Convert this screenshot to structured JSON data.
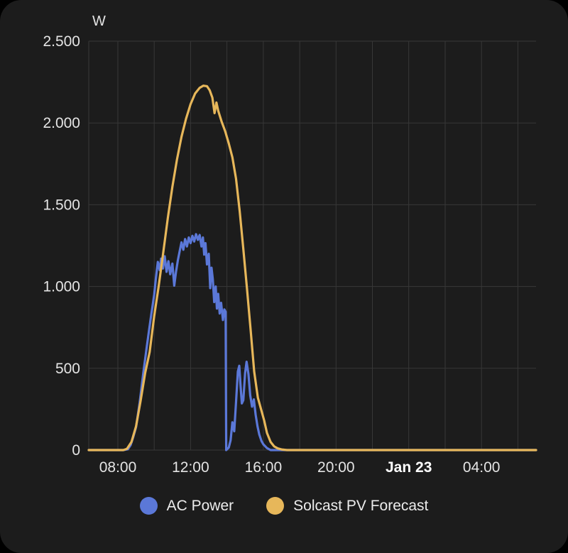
{
  "page_background": "#000000",
  "card_background": "#1c1c1c",
  "grid_color": "#373737",
  "text_color": "#e4e4e4",
  "bold_tick_color": "#ffffff",
  "chart_data": {
    "type": "line",
    "ylabel": "W",
    "ylim": [
      0,
      2500
    ],
    "x_range_hours": [
      6.4,
      31.0
    ],
    "grid": true,
    "legend_position": "bottom",
    "y_ticks": [
      {
        "value": 0,
        "label": "0"
      },
      {
        "value": 500,
        "label": "500"
      },
      {
        "value": 1000,
        "label": "1.000"
      },
      {
        "value": 1500,
        "label": "1.500"
      },
      {
        "value": 2000,
        "label": "2.000"
      },
      {
        "value": 2500,
        "label": "2.500"
      }
    ],
    "x_ticks": [
      {
        "value": 8,
        "label": "08:00",
        "bold": false
      },
      {
        "value": 12,
        "label": "12:00",
        "bold": false
      },
      {
        "value": 16,
        "label": "16:00",
        "bold": false
      },
      {
        "value": 20,
        "label": "20:00",
        "bold": false
      },
      {
        "value": 24,
        "label": "Jan 23",
        "bold": true
      },
      {
        "value": 28,
        "label": "04:00",
        "bold": false
      }
    ],
    "x_grid_hours": [
      8,
      10,
      12,
      14,
      16,
      18,
      20,
      22,
      24,
      26,
      28,
      30
    ],
    "series": [
      {
        "name": "AC Power",
        "color": "#5b78d8",
        "points": [
          [
            6.4,
            0
          ],
          [
            7.5,
            0
          ],
          [
            8.3,
            0
          ],
          [
            8.55,
            5
          ],
          [
            8.7,
            30
          ],
          [
            8.85,
            80
          ],
          [
            9.0,
            140
          ],
          [
            9.2,
            290
          ],
          [
            9.4,
            470
          ],
          [
            9.6,
            640
          ],
          [
            9.8,
            800
          ],
          [
            10.0,
            950
          ],
          [
            10.1,
            1060
          ],
          [
            10.2,
            1150
          ],
          [
            10.3,
            1100
          ],
          [
            10.38,
            1170
          ],
          [
            10.48,
            1110
          ],
          [
            10.58,
            1185
          ],
          [
            10.68,
            1090
          ],
          [
            10.78,
            1155
          ],
          [
            10.88,
            1075
          ],
          [
            11.0,
            1140
          ],
          [
            11.1,
            1005
          ],
          [
            11.2,
            1090
          ],
          [
            11.3,
            1160
          ],
          [
            11.4,
            1215
          ],
          [
            11.5,
            1270
          ],
          [
            11.6,
            1225
          ],
          [
            11.7,
            1290
          ],
          [
            11.8,
            1245
          ],
          [
            11.9,
            1300
          ],
          [
            12.0,
            1265
          ],
          [
            12.1,
            1310
          ],
          [
            12.2,
            1275
          ],
          [
            12.3,
            1320
          ],
          [
            12.4,
            1285
          ],
          [
            12.5,
            1315
          ],
          [
            12.6,
            1245
          ],
          [
            12.68,
            1300
          ],
          [
            12.75,
            1195
          ],
          [
            12.82,
            1265
          ],
          [
            12.9,
            1135
          ],
          [
            13.0,
            1200
          ],
          [
            13.08,
            990
          ],
          [
            13.15,
            1115
          ],
          [
            13.22,
            1045
          ],
          [
            13.3,
            905
          ],
          [
            13.38,
            1000
          ],
          [
            13.45,
            865
          ],
          [
            13.52,
            955
          ],
          [
            13.6,
            835
          ],
          [
            13.68,
            900
          ],
          [
            13.78,
            795
          ],
          [
            13.86,
            860
          ],
          [
            13.93,
            845
          ],
          [
            13.96,
            0
          ],
          [
            14.1,
            15
          ],
          [
            14.2,
            60
          ],
          [
            14.3,
            170
          ],
          [
            14.4,
            115
          ],
          [
            14.5,
            290
          ],
          [
            14.6,
            480
          ],
          [
            14.68,
            515
          ],
          [
            14.75,
            395
          ],
          [
            14.82,
            285
          ],
          [
            14.9,
            305
          ],
          [
            15.0,
            470
          ],
          [
            15.08,
            540
          ],
          [
            15.18,
            465
          ],
          [
            15.28,
            335
          ],
          [
            15.38,
            265
          ],
          [
            15.48,
            310
          ],
          [
            15.58,
            215
          ],
          [
            15.68,
            145
          ],
          [
            15.78,
            95
          ],
          [
            15.9,
            55
          ],
          [
            16.0,
            35
          ],
          [
            16.2,
            12
          ],
          [
            16.4,
            0
          ],
          [
            18.0,
            0
          ],
          [
            22.0,
            0
          ],
          [
            26.0,
            0
          ],
          [
            31.0,
            0
          ]
        ]
      },
      {
        "name": "Solcast PV Forecast",
        "color": "#e7b75a",
        "points": [
          [
            6.4,
            0
          ],
          [
            7.5,
            0
          ],
          [
            8.3,
            0
          ],
          [
            8.5,
            8
          ],
          [
            8.75,
            50
          ],
          [
            9.0,
            145
          ],
          [
            9.25,
            300
          ],
          [
            9.5,
            470
          ],
          [
            9.75,
            600
          ],
          [
            10.0,
            820
          ],
          [
            10.25,
            1005
          ],
          [
            10.5,
            1210
          ],
          [
            10.75,
            1420
          ],
          [
            11.0,
            1610
          ],
          [
            11.25,
            1775
          ],
          [
            11.5,
            1915
          ],
          [
            11.75,
            2025
          ],
          [
            12.0,
            2115
          ],
          [
            12.25,
            2180
          ],
          [
            12.5,
            2215
          ],
          [
            12.7,
            2228
          ],
          [
            12.9,
            2225
          ],
          [
            13.05,
            2200
          ],
          [
            13.2,
            2155
          ],
          [
            13.32,
            2060
          ],
          [
            13.42,
            2125
          ],
          [
            13.52,
            2075
          ],
          [
            13.7,
            2010
          ],
          [
            13.9,
            1950
          ],
          [
            14.1,
            1875
          ],
          [
            14.3,
            1790
          ],
          [
            14.5,
            1660
          ],
          [
            14.7,
            1460
          ],
          [
            14.9,
            1230
          ],
          [
            15.1,
            990
          ],
          [
            15.3,
            740
          ],
          [
            15.5,
            480
          ],
          [
            15.7,
            320
          ],
          [
            15.9,
            240
          ],
          [
            16.05,
            180
          ],
          [
            16.2,
            105
          ],
          [
            16.4,
            50
          ],
          [
            16.6,
            22
          ],
          [
            16.8,
            10
          ],
          [
            17.0,
            4
          ],
          [
            17.3,
            0
          ],
          [
            18.0,
            0
          ],
          [
            22.0,
            0
          ],
          [
            26.0,
            0
          ],
          [
            31.0,
            0
          ]
        ]
      }
    ]
  }
}
